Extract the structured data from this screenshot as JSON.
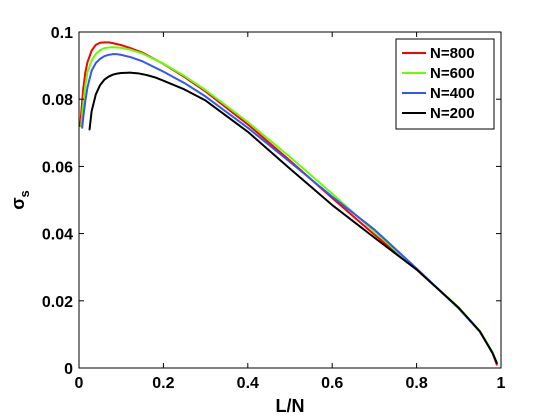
{
  "chart_data": {
    "type": "line",
    "xlabel": "L/N",
    "ylabel": "σ",
    "ylabel_sub": "s",
    "xlim": [
      0,
      1
    ],
    "ylim": [
      0,
      0.1
    ],
    "x_ticks": [
      0,
      0.2,
      0.4,
      0.6,
      0.8,
      1
    ],
    "x_tick_labels": [
      "0",
      "0.2",
      "0.4",
      "0.6",
      "0.8",
      "1"
    ],
    "y_ticks": [
      0,
      0.02,
      0.04,
      0.06,
      0.08,
      0.1
    ],
    "y_tick_labels": [
      "0",
      "0.02",
      "0.04",
      "0.06",
      "0.08",
      "0.1"
    ],
    "grid": false,
    "legend_position": "top-right",
    "series": [
      {
        "name": "N=800",
        "color": "#ff0000",
        "x": [
          0.003,
          0.006,
          0.01,
          0.015,
          0.02,
          0.03,
          0.04,
          0.05,
          0.06,
          0.07,
          0.08,
          0.1,
          0.12,
          0.15,
          0.2,
          0.25,
          0.3,
          0.4,
          0.5,
          0.6,
          0.7,
          0.8,
          0.9,
          0.95,
          0.98,
          0.99
        ],
        "y": [
          0.072,
          0.077,
          0.083,
          0.088,
          0.091,
          0.0945,
          0.0962,
          0.0968,
          0.0969,
          0.0969,
          0.0967,
          0.0961,
          0.0953,
          0.0939,
          0.0905,
          0.0866,
          0.0823,
          0.0725,
          0.0617,
          0.0506,
          0.0397,
          0.0293,
          0.0179,
          0.0108,
          0.0045,
          0.001
        ]
      },
      {
        "name": "N=600",
        "color": "#66ff00",
        "x": [
          0.005,
          0.008,
          0.012,
          0.016,
          0.02,
          0.03,
          0.04,
          0.05,
          0.06,
          0.07,
          0.08,
          0.1,
          0.12,
          0.15,
          0.2,
          0.25,
          0.3,
          0.4,
          0.5,
          0.6,
          0.7,
          0.8,
          0.9,
          0.95,
          0.98,
          0.99
        ],
        "y": [
          0.072,
          0.076,
          0.081,
          0.085,
          0.088,
          0.0915,
          0.0935,
          0.0946,
          0.0952,
          0.0954,
          0.0955,
          0.0953,
          0.0948,
          0.0936,
          0.0906,
          0.0869,
          0.0827,
          0.0732,
          0.0628,
          0.0519,
          0.0406,
          0.0294,
          0.018,
          0.011,
          0.0048,
          0.0015
        ]
      },
      {
        "name": "N=400",
        "color": "#3355ff",
        "x": [
          0.0075,
          0.01,
          0.015,
          0.02,
          0.03,
          0.04,
          0.05,
          0.06,
          0.07,
          0.08,
          0.09,
          0.1,
          0.12,
          0.15,
          0.2,
          0.25,
          0.3,
          0.4,
          0.5,
          0.6,
          0.7,
          0.8,
          0.9,
          0.95,
          0.98,
          0.99
        ],
        "y": [
          0.0715,
          0.0745,
          0.0795,
          0.0835,
          0.0885,
          0.0908,
          0.092,
          0.0928,
          0.0932,
          0.0934,
          0.0934,
          0.0932,
          0.0926,
          0.0913,
          0.0882,
          0.0848,
          0.0808,
          0.0715,
          0.0613,
          0.051,
          0.0412,
          0.0296,
          0.0177,
          0.0108,
          0.0045,
          0.0015
        ]
      },
      {
        "name": "N=200",
        "color": "#000000",
        "x": [
          0.025,
          0.03,
          0.04,
          0.05,
          0.06,
          0.07,
          0.08,
          0.09,
          0.1,
          0.12,
          0.14,
          0.16,
          0.18,
          0.2,
          0.25,
          0.3,
          0.4,
          0.5,
          0.6,
          0.7,
          0.8,
          0.9,
          0.95,
          0.98,
          0.99
        ],
        "y": [
          0.071,
          0.0765,
          0.0815,
          0.0842,
          0.0858,
          0.0867,
          0.0873,
          0.0876,
          0.0878,
          0.0879,
          0.0877,
          0.0872,
          0.0865,
          0.0855,
          0.0829,
          0.0796,
          0.0703,
          0.0593,
          0.0485,
          0.0388,
          0.0293,
          0.0179,
          0.0109,
          0.0044,
          0.0015
        ]
      }
    ]
  }
}
